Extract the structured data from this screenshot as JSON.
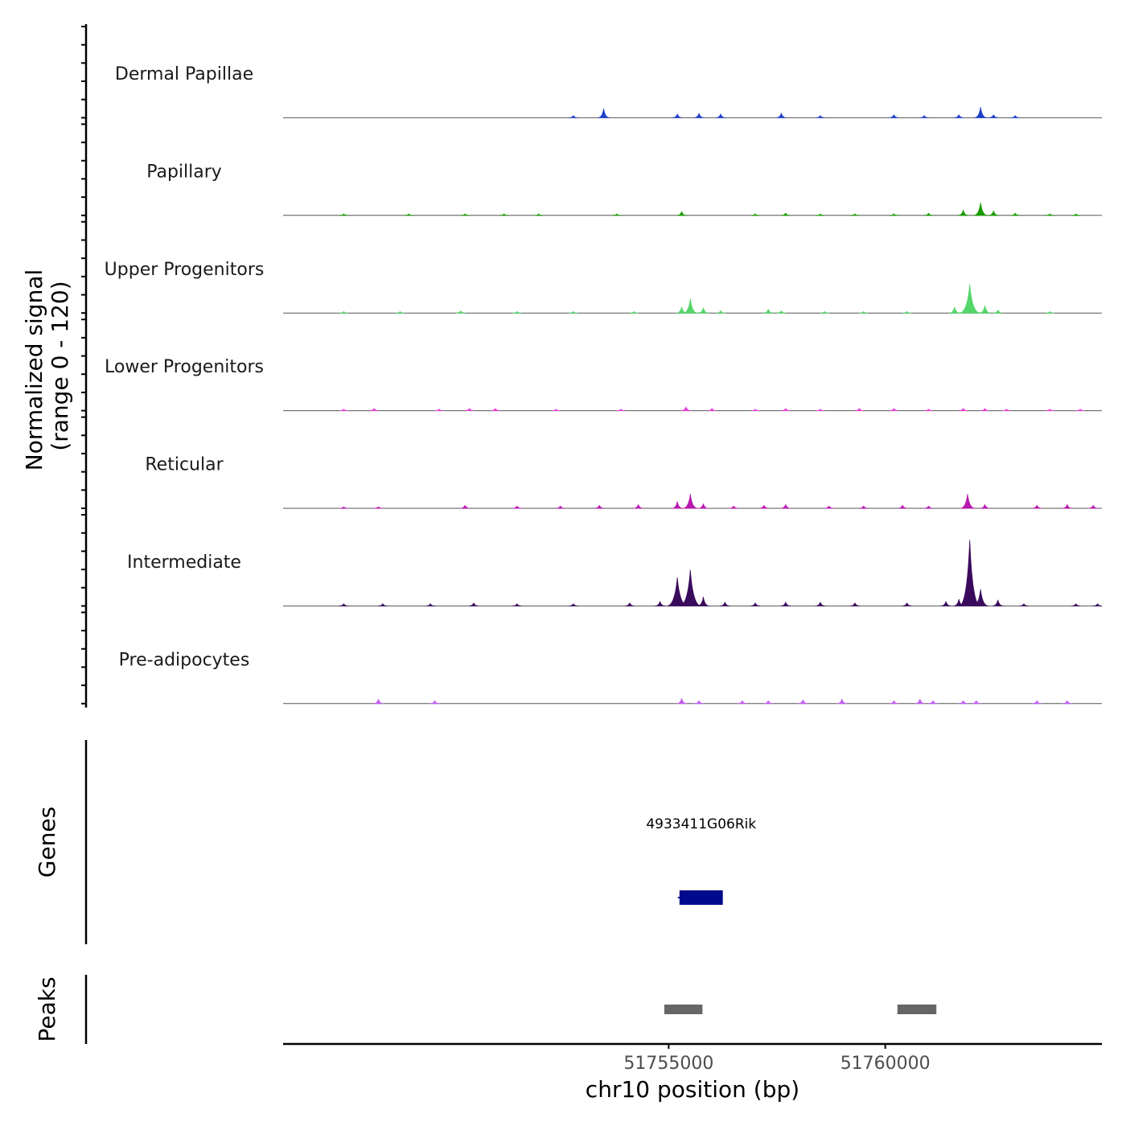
{
  "chart_data": {
    "type": "area",
    "title": "",
    "ylabel_line1": "Normalized signal",
    "ylabel_line2": "(range 0 - 120)",
    "ylim": [
      0,
      120
    ],
    "xlabel": "chr10 position (bp)",
    "xlim": [
      51746100,
      51765000
    ],
    "xticks": [
      51755000,
      51760000
    ],
    "xtick_labels": [
      "51755000",
      "51760000"
    ],
    "tracks": [
      {
        "name": "Dermal Papillae",
        "color": "#2040cc",
        "peaks": [
          [
            51752800,
            3
          ],
          [
            51753500,
            12
          ],
          [
            51755200,
            5
          ],
          [
            51755700,
            6
          ],
          [
            51756200,
            5
          ],
          [
            51757600,
            6
          ],
          [
            51758500,
            3
          ],
          [
            51760200,
            4
          ],
          [
            51760900,
            3
          ],
          [
            51761700,
            4
          ],
          [
            51762200,
            14
          ],
          [
            51762500,
            4
          ],
          [
            51763000,
            3
          ]
        ]
      },
      {
        "name": "Papillary",
        "color": "#1a9c00",
        "peaks": [
          [
            51747500,
            2
          ],
          [
            51749000,
            2
          ],
          [
            51750300,
            2
          ],
          [
            51751200,
            2
          ],
          [
            51752000,
            2
          ],
          [
            51753800,
            2
          ],
          [
            51755300,
            5
          ],
          [
            51757000,
            2
          ],
          [
            51757700,
            3
          ],
          [
            51758500,
            2
          ],
          [
            51759300,
            2
          ],
          [
            51760200,
            2
          ],
          [
            51761000,
            3
          ],
          [
            51761800,
            7
          ],
          [
            51762200,
            17
          ],
          [
            51762500,
            6
          ],
          [
            51763000,
            3
          ],
          [
            51763800,
            2
          ],
          [
            51764400,
            2
          ]
        ]
      },
      {
        "name": "Upper Progenitors",
        "color": "#55d66b",
        "peaks": [
          [
            51747500,
            2
          ],
          [
            51748800,
            2
          ],
          [
            51750200,
            3
          ],
          [
            51751500,
            2
          ],
          [
            51752800,
            2
          ],
          [
            51754200,
            2
          ],
          [
            51755300,
            8
          ],
          [
            51755500,
            19
          ],
          [
            51755800,
            7
          ],
          [
            51756200,
            3
          ],
          [
            51757300,
            5
          ],
          [
            51757600,
            3
          ],
          [
            51758600,
            2
          ],
          [
            51759500,
            2
          ],
          [
            51760500,
            2
          ],
          [
            51761600,
            8
          ],
          [
            51761950,
            38
          ],
          [
            51762300,
            10
          ],
          [
            51762600,
            4
          ],
          [
            51763800,
            2
          ]
        ]
      },
      {
        "name": "Lower Progenitors",
        "color": "#e63ad6",
        "peaks": [
          [
            51747500,
            2
          ],
          [
            51748200,
            3
          ],
          [
            51749700,
            2
          ],
          [
            51750400,
            3
          ],
          [
            51751000,
            3
          ],
          [
            51752400,
            2
          ],
          [
            51753900,
            2
          ],
          [
            51755400,
            5
          ],
          [
            51756000,
            3
          ],
          [
            51757000,
            2
          ],
          [
            51757700,
            3
          ],
          [
            51758500,
            2
          ],
          [
            51759400,
            3
          ],
          [
            51760200,
            3
          ],
          [
            51761000,
            2
          ],
          [
            51761800,
            3
          ],
          [
            51762300,
            3
          ],
          [
            51762800,
            2
          ],
          [
            51763800,
            2
          ],
          [
            51764500,
            2
          ]
        ]
      },
      {
        "name": "Reticular",
        "color": "#b818b0",
        "peaks": [
          [
            51747500,
            2
          ],
          [
            51748300,
            2
          ],
          [
            51750300,
            4
          ],
          [
            51751500,
            3
          ],
          [
            51752500,
            3
          ],
          [
            51753400,
            4
          ],
          [
            51754300,
            5
          ],
          [
            51755200,
            9
          ],
          [
            51755500,
            19
          ],
          [
            51755800,
            6
          ],
          [
            51756500,
            3
          ],
          [
            51757200,
            4
          ],
          [
            51757700,
            5
          ],
          [
            51758700,
            3
          ],
          [
            51759500,
            3
          ],
          [
            51760400,
            4
          ],
          [
            51761000,
            3
          ],
          [
            51761900,
            19
          ],
          [
            51762300,
            5
          ],
          [
            51763500,
            4
          ],
          [
            51764200,
            5
          ],
          [
            51764800,
            4
          ]
        ]
      },
      {
        "name": "Intermediate",
        "color": "#3a0a5c",
        "peaks": [
          [
            51747500,
            3
          ],
          [
            51748400,
            3
          ],
          [
            51749500,
            3
          ],
          [
            51750500,
            4
          ],
          [
            51751500,
            3
          ],
          [
            51752800,
            3
          ],
          [
            51754100,
            4
          ],
          [
            51754800,
            6
          ],
          [
            51755200,
            38
          ],
          [
            51755500,
            48
          ],
          [
            51755800,
            12
          ],
          [
            51756300,
            5
          ],
          [
            51757000,
            4
          ],
          [
            51757700,
            5
          ],
          [
            51758500,
            5
          ],
          [
            51759300,
            4
          ],
          [
            51760500,
            4
          ],
          [
            51761400,
            6
          ],
          [
            51761700,
            9
          ],
          [
            51761950,
            88
          ],
          [
            51762200,
            22
          ],
          [
            51762600,
            8
          ],
          [
            51763200,
            3
          ],
          [
            51764400,
            3
          ],
          [
            51764900,
            3
          ]
        ]
      },
      {
        "name": "Pre-adipocytes",
        "color": "#c25ef0",
        "peaks": [
          [
            51748300,
            6
          ],
          [
            51749600,
            4
          ],
          [
            51755300,
            7
          ],
          [
            51755700,
            4
          ],
          [
            51756700,
            4
          ],
          [
            51757300,
            4
          ],
          [
            51758100,
            5
          ],
          [
            51759000,
            6
          ],
          [
            51760200,
            4
          ],
          [
            51760800,
            6
          ],
          [
            51761100,
            4
          ],
          [
            51761800,
            4
          ],
          [
            51762100,
            4
          ],
          [
            51763500,
            4
          ],
          [
            51764200,
            4
          ]
        ]
      }
    ],
    "genes_label": "Genes",
    "genes": [
      {
        "name": "4933411G06Rik",
        "start": 51755250,
        "end": 51756250,
        "color": "#000a8c"
      }
    ],
    "peaks_label": "Peaks",
    "peaks": [
      {
        "start": 51754900,
        "end": 51755780
      },
      {
        "start": 51760280,
        "end": 51761180
      }
    ],
    "peak_color": "#666666",
    "axis_color": "#000000",
    "baseline_color": "#555555"
  }
}
